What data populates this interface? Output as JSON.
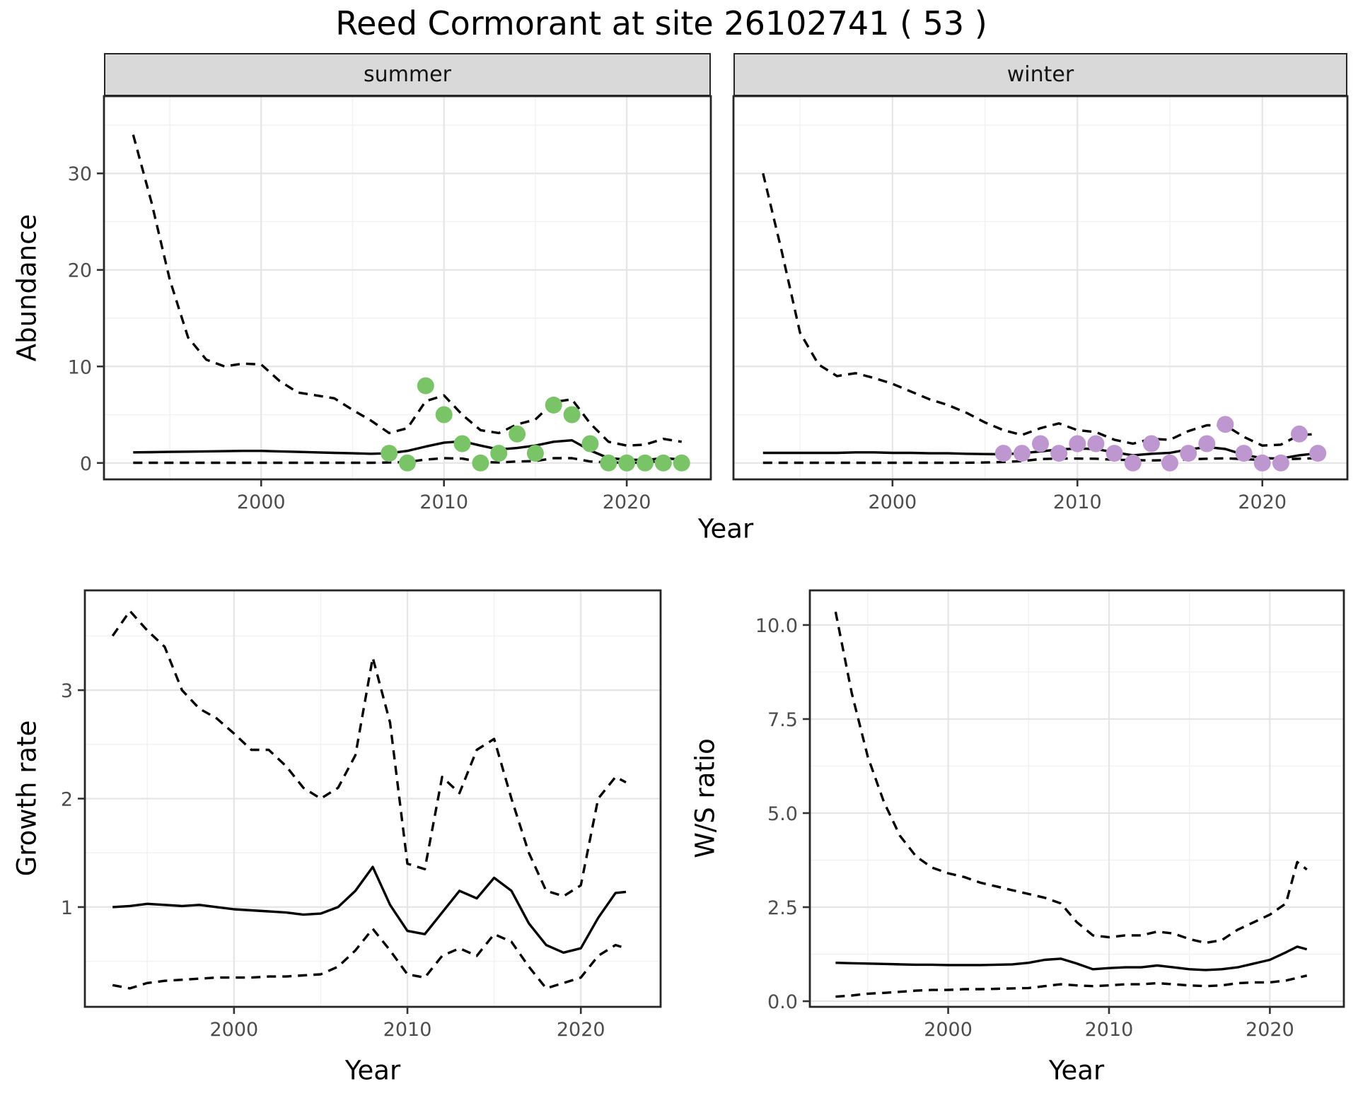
{
  "title": "Reed Cormorant at site 26102741 ( 53 )",
  "axis_labels": {
    "x": "Year",
    "y_abundance": "Abundance",
    "y_growth": "Growth rate",
    "y_ws": "W/S ratio"
  },
  "colors": {
    "summer_points": "#7ac468",
    "winter_points": "#bf97d0",
    "line": "#000000",
    "strip_bg": "#d9d9d9",
    "grid_major": "#e5e5e5",
    "grid_minor": "#f1f1f1",
    "panel_border": "#262626",
    "tick_mark": "#333333",
    "tick_label": "#4d4d4d"
  },
  "chart_data": [
    {
      "id": "abundance-summer",
      "type": "line",
      "facet_label": "summer",
      "xlabel": "Year",
      "ylabel": "Abundance",
      "x_range": [
        1991.4,
        2024.6
      ],
      "y_range": [
        -1.7,
        38
      ],
      "x_ticks": [
        2000,
        2010,
        2020
      ],
      "x_tick_labels": [
        "2000",
        "2010",
        "2020"
      ],
      "x_minor": [
        1995,
        2005,
        2015
      ],
      "y_ticks": [
        0,
        10,
        20,
        30
      ],
      "y_tick_labels": [
        "0",
        "10",
        "20",
        "30"
      ],
      "y_minor": [
        5,
        15,
        25,
        35
      ],
      "series": [
        {
          "name": "upper-95ci",
          "style": "dashed",
          "x": [
            1993,
            1994,
            1995,
            1996,
            1997,
            1998,
            1999,
            2000,
            2001,
            2002,
            2003,
            2004,
            2005,
            2006,
            2007,
            2008,
            2009,
            2010,
            2011,
            2012,
            2013,
            2014,
            2015,
            2016,
            2017,
            2018,
            2019,
            2020,
            2021,
            2022,
            2023
          ],
          "y": [
            34,
            27,
            19,
            13,
            10.7,
            10,
            10.3,
            10.2,
            8.5,
            7.3,
            7,
            6.7,
            5.5,
            4.4,
            3.1,
            3.6,
            6.4,
            7,
            5,
            3.4,
            3.1,
            4,
            4.5,
            6.3,
            6.6,
            4.1,
            2.2,
            1.8,
            1.9,
            2.5,
            2.2
          ]
        },
        {
          "name": "fitted",
          "style": "solid",
          "x": [
            1993,
            1994,
            1995,
            1996,
            1997,
            1998,
            1999,
            2000,
            2001,
            2002,
            2003,
            2004,
            2005,
            2006,
            2007,
            2008,
            2009,
            2010,
            2011,
            2012,
            2013,
            2014,
            2015,
            2016,
            2017,
            2018,
            2019,
            2020,
            2021,
            2022,
            2023
          ],
          "y": [
            1.1,
            1.12,
            1.15,
            1.17,
            1.2,
            1.22,
            1.25,
            1.25,
            1.2,
            1.15,
            1.1,
            1.05,
            1,
            0.95,
            1,
            1.25,
            1.7,
            2.1,
            2.25,
            1.8,
            1.4,
            1.55,
            1.8,
            2.2,
            2.35,
            1.3,
            0.5,
            0.35,
            0.3,
            0.5,
            0.35
          ]
        },
        {
          "name": "lower-95ci",
          "style": "dashed",
          "x": [
            1993,
            1994,
            1995,
            1996,
            1997,
            1998,
            1999,
            2000,
            2001,
            2002,
            2003,
            2004,
            2005,
            2006,
            2007,
            2008,
            2009,
            2010,
            2011,
            2012,
            2013,
            2014,
            2015,
            2016,
            2017,
            2018,
            2019,
            2020,
            2021,
            2022,
            2023
          ],
          "y": [
            0.02,
            0.02,
            0.02,
            0.02,
            0.02,
            0.02,
            0.02,
            0.02,
            0.02,
            0.02,
            0.02,
            0.02,
            0.02,
            0.02,
            0.05,
            0.1,
            0.35,
            0.5,
            0.45,
            0.1,
            0.05,
            0.15,
            0.2,
            0.5,
            0.5,
            0.15,
            0.05,
            0.03,
            0.03,
            0.25,
            0.1
          ]
        }
      ],
      "points": {
        "name": "observed-counts",
        "color_key": "summer_points",
        "x": [
          2007,
          2008,
          2009,
          2010,
          2011,
          2012,
          2013,
          2014,
          2015,
          2016,
          2017,
          2018,
          2019,
          2020,
          2021,
          2022,
          2023
        ],
        "y": [
          1,
          0,
          8,
          5,
          2,
          0,
          1,
          3,
          1,
          6,
          5,
          2,
          0,
          0,
          0,
          0,
          0
        ]
      }
    },
    {
      "id": "abundance-winter",
      "type": "line",
      "facet_label": "winter",
      "xlabel": "Year",
      "ylabel": "Abundance",
      "x_range": [
        1991.4,
        2024.6
      ],
      "y_range": [
        -1.7,
        38
      ],
      "x_ticks": [
        2000,
        2010,
        2020
      ],
      "x_tick_labels": [
        "2000",
        "2010",
        "2020"
      ],
      "x_minor": [
        1995,
        2005,
        2015
      ],
      "y_ticks": [
        0,
        10,
        20,
        30
      ],
      "y_tick_labels": [
        "0",
        "10",
        "20",
        "30"
      ],
      "y_minor": [
        5,
        15,
        25,
        35
      ],
      "series": [
        {
          "name": "upper-95ci",
          "style": "dashed",
          "x": [
            1993,
            1994,
            1995,
            1996,
            1997,
            1998,
            1999,
            2000,
            2001,
            2002,
            2003,
            2004,
            2005,
            2006,
            2007,
            2008,
            2009,
            2010,
            2011,
            2012,
            2013,
            2014,
            2015,
            2016,
            2017,
            2018,
            2019,
            2020,
            2021,
            2022,
            2023
          ],
          "y": [
            30,
            22,
            13.5,
            10.2,
            9,
            9.3,
            8.8,
            8.2,
            7.4,
            6.6,
            6,
            5.2,
            4.2,
            3.4,
            2.9,
            3.6,
            4.1,
            3.4,
            3.2,
            2.4,
            2,
            2.5,
            2.4,
            3.3,
            3.9,
            3.9,
            2.7,
            1.8,
            1.9,
            2.9,
            3
          ]
        },
        {
          "name": "fitted",
          "style": "solid",
          "x": [
            1993,
            1994,
            1995,
            1996,
            1997,
            1998,
            1999,
            2000,
            2001,
            2002,
            2003,
            2004,
            2005,
            2006,
            2007,
            2008,
            2009,
            2010,
            2011,
            2012,
            2013,
            2014,
            2015,
            2016,
            2017,
            2018,
            2019,
            2020,
            2021,
            2022,
            2023
          ],
          "y": [
            1.05,
            1.05,
            1.05,
            1.05,
            1.05,
            1.1,
            1.1,
            1.05,
            1.05,
            1,
            1,
            0.95,
            0.92,
            0.9,
            1,
            1.2,
            1.4,
            1.5,
            1.45,
            1.1,
            0.8,
            0.95,
            1.05,
            1.4,
            1.65,
            1.45,
            0.85,
            0.5,
            0.45,
            0.8,
            1
          ]
        },
        {
          "name": "lower-95ci",
          "style": "dashed",
          "x": [
            1993,
            1994,
            1995,
            1996,
            1997,
            1998,
            1999,
            2000,
            2001,
            2002,
            2003,
            2004,
            2005,
            2006,
            2007,
            2008,
            2009,
            2010,
            2011,
            2012,
            2013,
            2014,
            2015,
            2016,
            2017,
            2018,
            2019,
            2020,
            2021,
            2022,
            2023
          ],
          "y": [
            0.02,
            0.02,
            0.02,
            0.02,
            0.02,
            0.02,
            0.02,
            0.02,
            0.02,
            0.02,
            0.02,
            0.03,
            0.05,
            0.1,
            0.2,
            0.4,
            0.45,
            0.45,
            0.44,
            0.33,
            0.3,
            0.26,
            0.3,
            0.37,
            0.44,
            0.48,
            0.4,
            0.3,
            0.37,
            0.44,
            0.5
          ]
        }
      ],
      "points": {
        "name": "observed-counts",
        "color_key": "winter_points",
        "x": [
          2006,
          2007,
          2008,
          2009,
          2010,
          2011,
          2012,
          2013,
          2014,
          2015,
          2016,
          2017,
          2018,
          2019,
          2020,
          2021,
          2022,
          2023
        ],
        "y": [
          1,
          1,
          2,
          1,
          2,
          2,
          1,
          0,
          2,
          0,
          1,
          2,
          4,
          1,
          0,
          0,
          3,
          1
        ]
      }
    },
    {
      "id": "growth-rate",
      "type": "line",
      "facet_label": null,
      "xlabel": "Year",
      "ylabel": "Growth rate",
      "x_range": [
        1991.4,
        2024.6
      ],
      "y_range": [
        0.08,
        3.92
      ],
      "x_ticks": [
        2000,
        2010,
        2020
      ],
      "x_tick_labels": [
        "2000",
        "2010",
        "2020"
      ],
      "x_minor": [
        1995,
        2005,
        2015
      ],
      "y_ticks": [
        1,
        2,
        3
      ],
      "y_tick_labels": [
        "1",
        "2",
        "3"
      ],
      "y_minor": [
        0.5,
        1.5,
        2.5,
        3.5
      ],
      "series": [
        {
          "name": "upper-95ci",
          "style": "dashed",
          "x": [
            1993,
            1994,
            1995,
            1996,
            1997,
            1998,
            1999,
            2000,
            2001,
            2002,
            2003,
            2004,
            2005,
            2006,
            2007,
            2008,
            2009,
            2010,
            2011,
            2012,
            2013,
            2014,
            2015,
            2016,
            2017,
            2018,
            2019,
            2020,
            2021,
            2022,
            2022.6
          ],
          "y": [
            3.5,
            3.73,
            3.55,
            3.4,
            3,
            2.83,
            2.74,
            2.6,
            2.45,
            2.45,
            2.3,
            2.1,
            2,
            2.1,
            2.4,
            3.3,
            2.7,
            1.4,
            1.35,
            2.2,
            2.05,
            2.45,
            2.55,
            2,
            1.5,
            1.15,
            1.1,
            1.2,
            2,
            2.2,
            2.15
          ]
        },
        {
          "name": "fitted",
          "style": "solid",
          "x": [
            1993,
            1994,
            1995,
            1996,
            1997,
            1998,
            1999,
            2000,
            2001,
            2002,
            2003,
            2004,
            2005,
            2006,
            2007,
            2008,
            2009,
            2010,
            2011,
            2012,
            2013,
            2014,
            2015,
            2016,
            2017,
            2018,
            2019,
            2020,
            2021,
            2022,
            2022.6
          ],
          "y": [
            1,
            1.01,
            1.03,
            1.02,
            1.01,
            1.02,
            1,
            0.98,
            0.97,
            0.96,
            0.95,
            0.93,
            0.94,
            1,
            1.15,
            1.37,
            1.02,
            0.78,
            0.75,
            0.95,
            1.15,
            1.08,
            1.27,
            1.15,
            0.85,
            0.65,
            0.58,
            0.62,
            0.9,
            1.13,
            1.14
          ]
        },
        {
          "name": "lower-95ci",
          "style": "dashed",
          "x": [
            1993,
            1994,
            1995,
            1996,
            1997,
            1998,
            1999,
            2000,
            2001,
            2002,
            2003,
            2004,
            2005,
            2006,
            2007,
            2008,
            2009,
            2010,
            2011,
            2012,
            2013,
            2014,
            2015,
            2016,
            2017,
            2018,
            2019,
            2020,
            2021,
            2022,
            2022.6
          ],
          "y": [
            0.28,
            0.25,
            0.3,
            0.32,
            0.33,
            0.34,
            0.35,
            0.35,
            0.35,
            0.36,
            0.36,
            0.37,
            0.38,
            0.45,
            0.6,
            0.8,
            0.6,
            0.38,
            0.35,
            0.55,
            0.62,
            0.55,
            0.75,
            0.68,
            0.45,
            0.25,
            0.3,
            0.35,
            0.55,
            0.65,
            0.62
          ]
        }
      ],
      "points": null
    },
    {
      "id": "ws-ratio",
      "type": "line",
      "facet_label": null,
      "xlabel": "Year",
      "ylabel": "W/S ratio",
      "x_range": [
        1991.4,
        2024.6
      ],
      "y_range": [
        -0.15,
        10.92
      ],
      "x_ticks": [
        2000,
        2010,
        2020
      ],
      "x_tick_labels": [
        "2000",
        "2010",
        "2020"
      ],
      "x_minor": [
        1995,
        2005,
        2015
      ],
      "y_ticks": [
        0,
        2.5,
        5,
        7.5,
        10
      ],
      "y_tick_labels": [
        "0.0",
        "2.5",
        "5.0",
        "7.5",
        "10.0"
      ],
      "y_minor": [
        1.25,
        3.75,
        6.25,
        8.75
      ],
      "series": [
        {
          "name": "upper-95ci",
          "style": "dashed",
          "x": [
            1993,
            1994,
            1995,
            1996,
            1997,
            1998,
            1999,
            2000,
            2001,
            2002,
            2003,
            2004,
            2005,
            2006,
            2007,
            2008,
            2009,
            2010,
            2011,
            2012,
            2013,
            2014,
            2015,
            2016,
            2017,
            2018,
            2019,
            2020,
            2021,
            2021.7,
            2022.3
          ],
          "y": [
            10.35,
            8.2,
            6.5,
            5.3,
            4.4,
            3.85,
            3.55,
            3.4,
            3.3,
            3.15,
            3.05,
            2.95,
            2.85,
            2.75,
            2.6,
            2.1,
            1.75,
            1.7,
            1.75,
            1.75,
            1.85,
            1.8,
            1.65,
            1.55,
            1.62,
            1.9,
            2.1,
            2.3,
            2.6,
            3.7,
            3.5
          ]
        },
        {
          "name": "fitted",
          "style": "solid",
          "x": [
            1993,
            1994,
            1995,
            1996,
            1997,
            1998,
            1999,
            2000,
            2001,
            2002,
            2003,
            2004,
            2005,
            2006,
            2007,
            2008,
            2009,
            2010,
            2011,
            2012,
            2013,
            2014,
            2015,
            2016,
            2017,
            2018,
            2019,
            2020,
            2021,
            2021.7,
            2022.3
          ],
          "y": [
            1.02,
            1.01,
            1,
            0.99,
            0.98,
            0.97,
            0.97,
            0.96,
            0.96,
            0.96,
            0.97,
            0.98,
            1.02,
            1.1,
            1.13,
            1,
            0.85,
            0.88,
            0.9,
            0.9,
            0.95,
            0.9,
            0.85,
            0.83,
            0.85,
            0.9,
            1,
            1.1,
            1.3,
            1.45,
            1.38
          ]
        },
        {
          "name": "lower-95ci",
          "style": "dashed",
          "x": [
            1993,
            1994,
            1995,
            1996,
            1997,
            1998,
            1999,
            2000,
            2001,
            2002,
            2003,
            2004,
            2005,
            2006,
            2007,
            2008,
            2009,
            2010,
            2011,
            2012,
            2013,
            2014,
            2015,
            2016,
            2017,
            2018,
            2019,
            2020,
            2021,
            2022.3
          ],
          "y": [
            0.12,
            0.15,
            0.2,
            0.22,
            0.25,
            0.28,
            0.3,
            0.3,
            0.32,
            0.32,
            0.33,
            0.34,
            0.35,
            0.4,
            0.45,
            0.42,
            0.4,
            0.42,
            0.45,
            0.45,
            0.48,
            0.45,
            0.42,
            0.4,
            0.42,
            0.48,
            0.5,
            0.5,
            0.55,
            0.68
          ]
        }
      ],
      "points": null
    }
  ]
}
